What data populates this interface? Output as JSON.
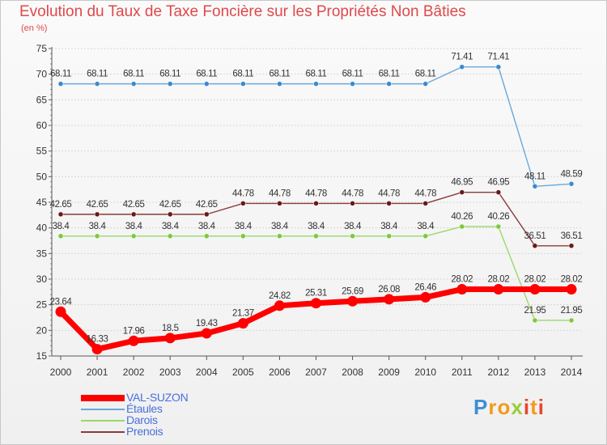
{
  "title": "Evolution du Taux de Taxe Foncière sur les Propriétés Non Bâties",
  "subtitle": "(en %)",
  "logo": {
    "text": "Proxiti",
    "colors": [
      "#3a8fd8",
      "#f39a1e",
      "#9ccc3a",
      "#e8442e"
    ]
  },
  "chart_data": {
    "type": "line",
    "title": "Evolution du Taux de Taxe Foncière sur les Propriétés Non Bâties",
    "ylabel": "(en %)",
    "xlabel": "",
    "ylim": [
      15,
      75
    ],
    "yticks": [
      15,
      20,
      25,
      30,
      35,
      40,
      45,
      50,
      55,
      60,
      65,
      70,
      75
    ],
    "x": [
      "2000",
      "2001",
      "2002",
      "2003",
      "2004",
      "2005",
      "2006",
      "2007",
      "2008",
      "2009",
      "2010",
      "2011",
      "2012",
      "2013",
      "2014"
    ],
    "legend_position": "bottom-left",
    "series": [
      {
        "name": "VAL-SUZON",
        "color": "#ff0000",
        "bold": true,
        "values": [
          23.64,
          16.33,
          17.96,
          18.5,
          19.43,
          21.37,
          24.82,
          25.31,
          25.69,
          26.08,
          26.46,
          28.02,
          28.02,
          28.02,
          28.02
        ],
        "labels": [
          "23.64",
          "16.33",
          "17.96",
          "18.5",
          "19.43",
          "21.37",
          "24.82",
          "25.31",
          "25.69",
          "26.08",
          "26.46",
          "28.02",
          "28.02",
          "28.02",
          "28.02"
        ]
      },
      {
        "name": "Étaules",
        "color": "#6aa8d8",
        "point_color": "#3a8ad0",
        "values": [
          68.11,
          68.11,
          68.11,
          68.11,
          68.11,
          68.11,
          68.11,
          68.11,
          68.11,
          68.11,
          68.11,
          71.41,
          71.41,
          48.11,
          48.59
        ],
        "labels": [
          "68.11",
          "68.11",
          "68.11",
          "68.11",
          "68.11",
          "68.11",
          "68.11",
          "68.11",
          "68.11",
          "68.11",
          "68.11",
          "71.41",
          "71.41",
          "48.11",
          "48.59"
        ]
      },
      {
        "name": "Darois",
        "color": "#9ad86a",
        "point_color": "#7cc83c",
        "values": [
          38.4,
          38.4,
          38.4,
          38.4,
          38.4,
          38.4,
          38.4,
          38.4,
          38.4,
          38.4,
          38.4,
          40.26,
          40.26,
          21.95,
          21.95
        ],
        "labels": [
          "38.4",
          "38.4",
          "38.4",
          "38.4",
          "38.4",
          "38.4",
          "38.4",
          "38.4",
          "38.4",
          "38.4",
          "38.4",
          "40.26",
          "40.26",
          "21.95",
          "21.95"
        ]
      },
      {
        "name": "Prenois",
        "color": "#8a3a3a",
        "point_color": "#6a1818",
        "values": [
          42.65,
          42.65,
          42.65,
          42.65,
          42.65,
          44.78,
          44.78,
          44.78,
          44.78,
          44.78,
          44.78,
          46.95,
          46.95,
          36.51,
          36.51
        ],
        "labels": [
          "42.65",
          "42.65",
          "42.65",
          "42.65",
          "42.65",
          "44.78",
          "44.78",
          "44.78",
          "44.78",
          "44.78",
          "44.78",
          "46.95",
          "46.95",
          "36.51",
          "36.51"
        ]
      }
    ]
  }
}
